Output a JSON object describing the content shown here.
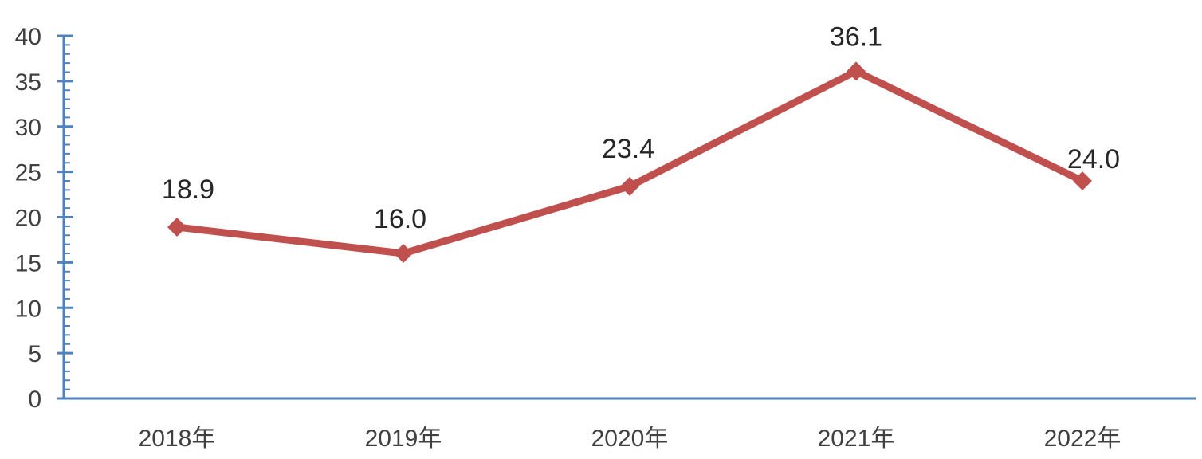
{
  "chart_data": {
    "type": "line",
    "categories": [
      "2018年",
      "2019年",
      "2020年",
      "2021年",
      "2022年"
    ],
    "series": [
      {
        "values": [
          18.9,
          16.0,
          23.4,
          36.1,
          24.0
        ]
      }
    ],
    "data_labels": [
      "18.9",
      "16.0",
      "23.4",
      "36.1",
      "24.0"
    ],
    "y_ticks": [
      "0",
      "5",
      "10",
      "15",
      "20",
      "25",
      "30",
      "35",
      "40"
    ],
    "ylim": [
      0,
      40
    ],
    "grid": false,
    "legend": "none",
    "marker": "diamond",
    "colors": {
      "line": "#C0504D",
      "axis": "#4F81BD",
      "tick_text": "#404040",
      "label_text": "#262626"
    }
  }
}
